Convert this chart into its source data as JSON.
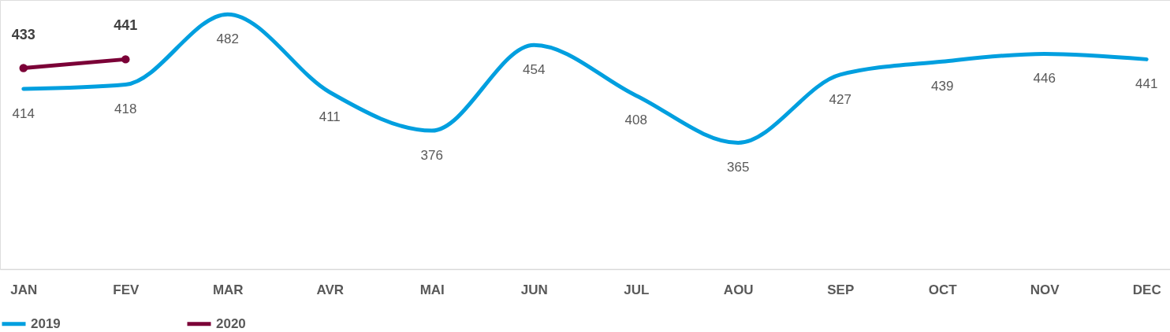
{
  "chart_data": {
    "type": "line",
    "categories": [
      "JAN",
      "FEV",
      "MAR",
      "AVR",
      "MAI",
      "JUN",
      "JUL",
      "AOU",
      "SEP",
      "OCT",
      "NOV",
      "DEC"
    ],
    "series": [
      {
        "name": "2019",
        "color": "#009fdf",
        "marker": "none",
        "values": [
          414,
          418,
          482,
          411,
          376,
          454,
          408,
          365,
          427,
          439,
          446,
          441
        ]
      },
      {
        "name": "2020",
        "color": "#7b0037",
        "marker": "circle",
        "values": [
          433,
          441,
          null,
          null,
          null,
          null,
          null,
          null,
          null,
          null,
          null,
          null
        ]
      }
    ],
    "ylim": [
      250,
      495
    ],
    "tick_labels": "x",
    "grid": false,
    "legend": "bottom",
    "data_labels": true,
    "line_style": "solid"
  }
}
